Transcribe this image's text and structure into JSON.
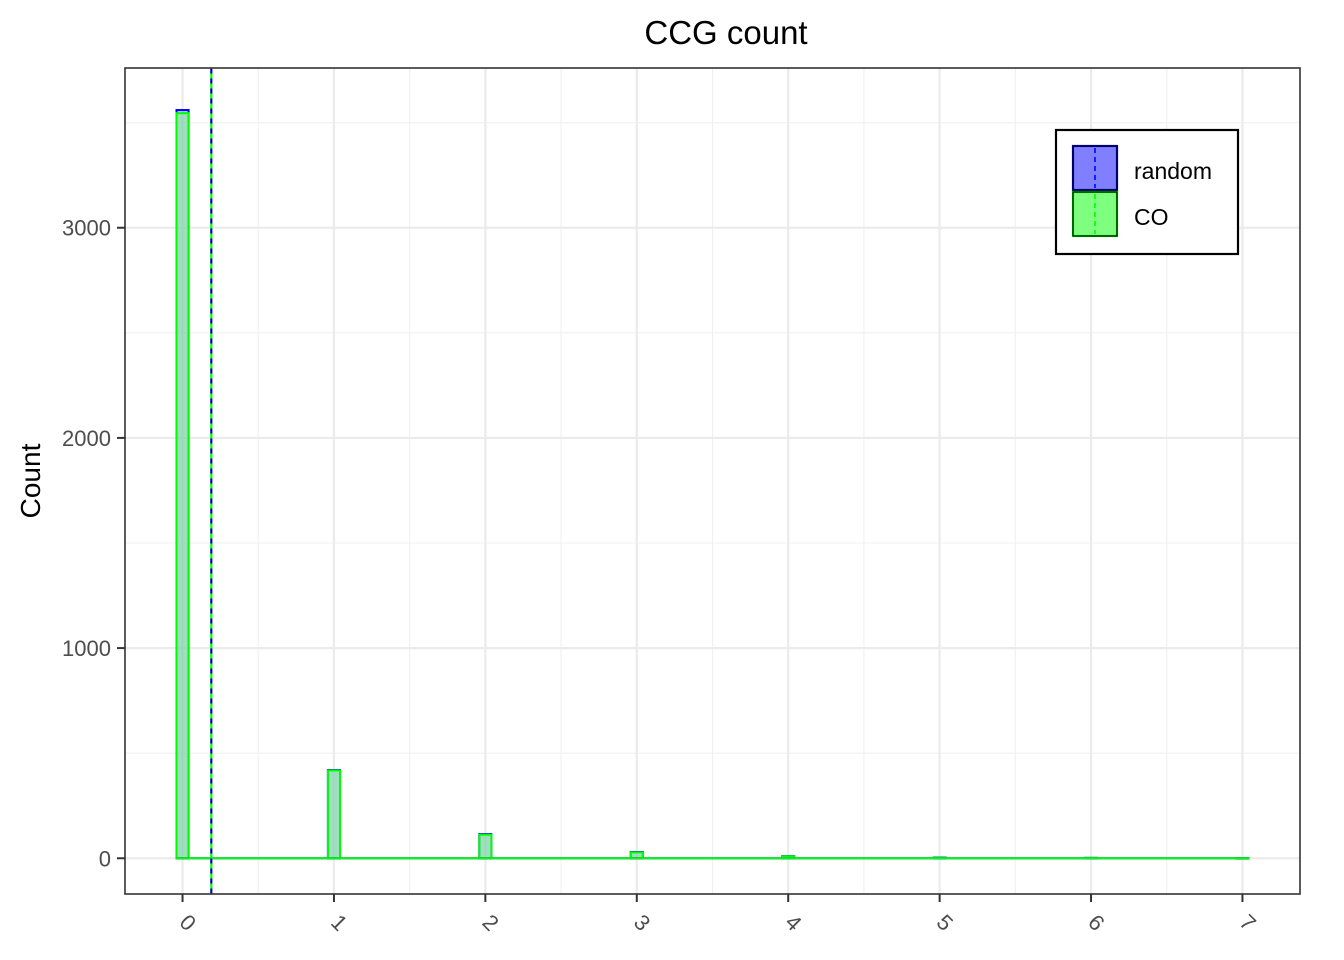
{
  "chart_data": {
    "type": "bar",
    "title": "CCG count",
    "xlabel": "",
    "ylabel": "Count",
    "x_ticks": [
      "0",
      "1",
      "2",
      "3",
      "4",
      "5",
      "6",
      "7"
    ],
    "y_ticks": [
      "0",
      "1000",
      "2000",
      "3000"
    ],
    "xlim": [
      -0.38,
      7.38
    ],
    "ylim": [
      -170,
      3760
    ],
    "grid": true,
    "legend_position": "top-right",
    "series": [
      {
        "name": "random",
        "color": "#0000ff",
        "fill": "#7f7fff",
        "x": [
          0,
          1,
          2,
          3,
          4,
          5,
          6,
          7
        ],
        "values": [
          3560,
          420,
          115,
          30,
          10,
          4,
          2,
          1
        ],
        "mean": 0.19
      },
      {
        "name": "CO",
        "color": "#00ff00",
        "fill": "#7fff7f",
        "x": [
          0,
          1,
          2,
          3,
          4,
          5,
          6,
          7
        ],
        "values": [
          3545,
          418,
          112,
          28,
          9,
          3,
          2,
          1
        ],
        "mean": 0.19
      }
    ]
  }
}
